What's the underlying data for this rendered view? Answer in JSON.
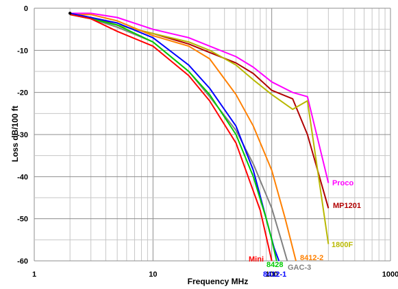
{
  "chart_data": {
    "type": "line",
    "xlabel": "Frequency  MHz",
    "ylabel": "Loss  dB/100 ft",
    "x_scale": "log",
    "xlim": [
      1,
      1000
    ],
    "ylim": [
      -60,
      0
    ],
    "x_ticks": [
      "1",
      "10",
      "100",
      "1000"
    ],
    "y_ticks": [
      "0",
      "-10",
      "-20",
      "-30",
      "-40",
      "-50",
      "-60"
    ],
    "grid": true,
    "legend": "inline labels at line ends",
    "series": [
      {
        "name": "Proco",
        "color": "#ff00ff",
        "x": [
          2,
          3,
          5,
          10,
          20,
          30,
          50,
          70,
          100,
          150,
          200,
          300
        ],
        "y": [
          -1.2,
          -1.2,
          -2.2,
          -5.0,
          -7.0,
          -9.0,
          -11.5,
          -14.0,
          -17.5,
          -20.0,
          -21.0,
          -41.5
        ]
      },
      {
        "name": "MP1201",
        "color": "#b00000",
        "x": [
          2,
          3,
          5,
          10,
          20,
          30,
          50,
          70,
          100,
          150,
          200,
          300
        ],
        "y": [
          -1.5,
          -2.2,
          -4.0,
          -6.0,
          -8.5,
          -10.5,
          -13.0,
          -15.5,
          -19.5,
          -21.5,
          -30.0,
          -47.5
        ]
      },
      {
        "name": "1800F",
        "color": "#b8b800",
        "x": [
          2,
          3,
          5,
          10,
          20,
          30,
          50,
          70,
          100,
          150,
          200,
          300
        ],
        "y": [
          -1.5,
          -2.5,
          -4.0,
          -6.0,
          -8.0,
          -10.0,
          -13.5,
          -17.0,
          -20.5,
          -24.0,
          -22.0,
          -56.0
        ]
      },
      {
        "name": "8412-2",
        "color": "#ff8000",
        "x": [
          2,
          3,
          5,
          10,
          20,
          30,
          50,
          70,
          100,
          130,
          160
        ],
        "y": [
          -1.5,
          -1.5,
          -3.0,
          -6.5,
          -9.0,
          -12.0,
          -20.5,
          -28.0,
          -38.5,
          -50.0,
          -60.0
        ]
      },
      {
        "name": "GAC-3",
        "color": "#808080",
        "x": [
          2,
          3,
          5,
          10,
          20,
          30,
          50,
          70,
          100,
          120,
          135
        ],
        "y": [
          -1.2,
          -2.5,
          -4.5,
          -8.0,
          -15.0,
          -21.0,
          -29.0,
          -37.0,
          -47.5,
          -55.0,
          -60.0
        ]
      },
      {
        "name": "8412-1",
        "color": "#0000ff",
        "x": [
          2,
          3,
          5,
          10,
          20,
          30,
          50,
          70,
          90,
          105,
          115
        ],
        "y": [
          -1.2,
          -2.2,
          -3.5,
          -7.0,
          -13.5,
          -19.0,
          -28.0,
          -38.5,
          -50.0,
          -57.0,
          -60.0
        ]
      },
      {
        "name": "8428",
        "color": "#00cc00",
        "x": [
          2,
          3,
          5,
          10,
          20,
          30,
          50,
          70,
          90,
          100,
          110
        ],
        "y": [
          -1.5,
          -2.5,
          -4.0,
          -8.0,
          -15.0,
          -20.5,
          -30.0,
          -40.0,
          -50.0,
          -55.0,
          -60.0
        ]
      },
      {
        "name": "Mini",
        "color": "#ff0000",
        "x": [
          2,
          3,
          5,
          10,
          20,
          30,
          50,
          80,
          100
        ],
        "y": [
          -1.5,
          -2.5,
          -5.5,
          -9.0,
          -16.0,
          -22.0,
          -32.0,
          -48.0,
          -60.0
        ]
      }
    ]
  }
}
